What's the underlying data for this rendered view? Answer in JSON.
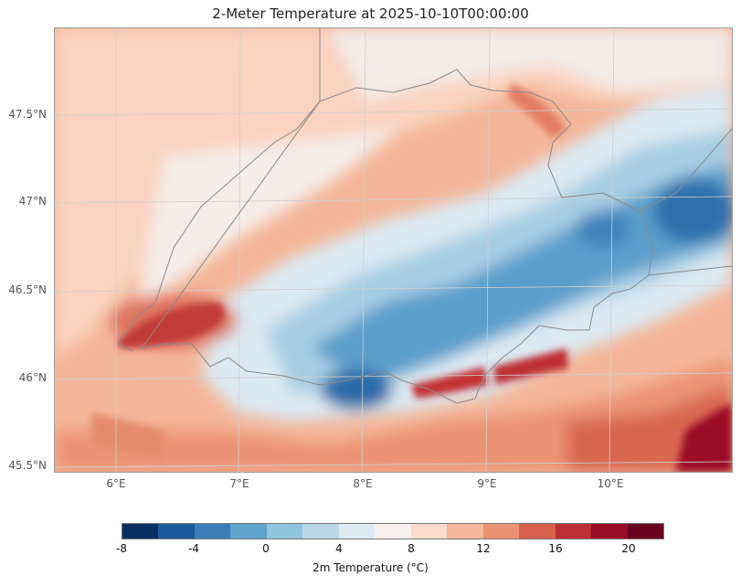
{
  "title": "2-Meter Temperature at 2025-10-10T00:00:00",
  "map": {
    "region": "Switzerland and surrounding Alps",
    "lat_ticks": [
      "47.5°N",
      "47°N",
      "46.5°N",
      "46°N",
      "45.5°N"
    ],
    "lon_ticks": [
      "6°E",
      "7°E",
      "8°E",
      "9°E",
      "10°E"
    ],
    "extent": {
      "lon": [
        5.5,
        10.95
      ],
      "lat": [
        45.45,
        47.98
      ]
    },
    "gridlines": true,
    "borders": true
  },
  "colorbar": {
    "label": "2m Temperature (°C)",
    "tick_labels": [
      "-8",
      "-4",
      "0",
      "4",
      "8",
      "12",
      "16",
      "20"
    ],
    "range": [
      -8,
      22
    ],
    "colors": [
      "#053061",
      "#1b5a9b",
      "#3a7fb9",
      "#5fa2cc",
      "#92c5de",
      "#bcd9ea",
      "#dfebf3",
      "#f5f0ee",
      "#fcdccb",
      "#f7b99c",
      "#eb9272",
      "#d6604d",
      "#bc2f34",
      "#970c25",
      "#67001f"
    ]
  }
}
